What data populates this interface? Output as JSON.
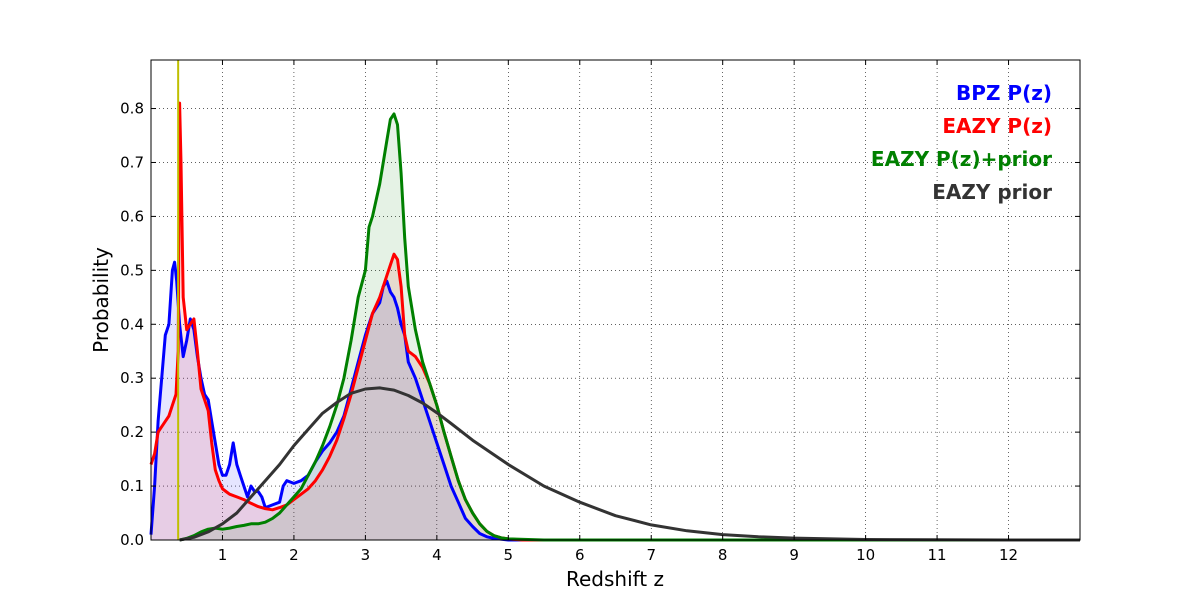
{
  "chart_data": {
    "type": "line",
    "title": "",
    "xlabel": "Redshift z",
    "ylabel": "Probability",
    "xlim": [
      0,
      13
    ],
    "ylim": [
      0,
      0.89
    ],
    "xticks": [
      "1",
      "2",
      "3",
      "4",
      "5",
      "6",
      "7",
      "8",
      "9",
      "10",
      "11",
      "12"
    ],
    "yticks": [
      "0.0",
      "0.1",
      "0.2",
      "0.3",
      "0.4",
      "0.5",
      "0.6",
      "0.7",
      "0.8"
    ],
    "grid": true,
    "legend_position": "top-right",
    "vline": {
      "x": 0.38,
      "color": "#bfbf00"
    },
    "series": [
      {
        "name": "BPZ P(z)",
        "color": "#0000ff",
        "fill": true,
        "points": [
          [
            0,
            0.01
          ],
          [
            0.05,
            0.1
          ],
          [
            0.1,
            0.22
          ],
          [
            0.15,
            0.3
          ],
          [
            0.2,
            0.38
          ],
          [
            0.25,
            0.4
          ],
          [
            0.3,
            0.5
          ],
          [
            0.33,
            0.515
          ],
          [
            0.36,
            0.48
          ],
          [
            0.4,
            0.4
          ],
          [
            0.45,
            0.34
          ],
          [
            0.5,
            0.37
          ],
          [
            0.55,
            0.41
          ],
          [
            0.6,
            0.39
          ],
          [
            0.65,
            0.34
          ],
          [
            0.7,
            0.3
          ],
          [
            0.75,
            0.27
          ],
          [
            0.8,
            0.26
          ],
          [
            0.85,
            0.22
          ],
          [
            0.9,
            0.18
          ],
          [
            0.95,
            0.14
          ],
          [
            1.0,
            0.12
          ],
          [
            1.05,
            0.12
          ],
          [
            1.1,
            0.14
          ],
          [
            1.15,
            0.18
          ],
          [
            1.2,
            0.14
          ],
          [
            1.25,
            0.12
          ],
          [
            1.3,
            0.1
          ],
          [
            1.35,
            0.08
          ],
          [
            1.4,
            0.1
          ],
          [
            1.45,
            0.09
          ],
          [
            1.5,
            0.09
          ],
          [
            1.55,
            0.08
          ],
          [
            1.6,
            0.06
          ],
          [
            1.7,
            0.065
          ],
          [
            1.8,
            0.07
          ],
          [
            1.85,
            0.1
          ],
          [
            1.9,
            0.11
          ],
          [
            2.0,
            0.105
          ],
          [
            2.1,
            0.11
          ],
          [
            2.2,
            0.12
          ],
          [
            2.3,
            0.145
          ],
          [
            2.4,
            0.165
          ],
          [
            2.5,
            0.18
          ],
          [
            2.6,
            0.2
          ],
          [
            2.7,
            0.23
          ],
          [
            2.8,
            0.28
          ],
          [
            2.9,
            0.33
          ],
          [
            3.0,
            0.38
          ],
          [
            3.1,
            0.42
          ],
          [
            3.2,
            0.44
          ],
          [
            3.25,
            0.47
          ],
          [
            3.3,
            0.48
          ],
          [
            3.35,
            0.46
          ],
          [
            3.4,
            0.45
          ],
          [
            3.45,
            0.43
          ],
          [
            3.5,
            0.4
          ],
          [
            3.55,
            0.38
          ],
          [
            3.6,
            0.33
          ],
          [
            3.7,
            0.3
          ],
          [
            3.8,
            0.26
          ],
          [
            3.9,
            0.22
          ],
          [
            4.0,
            0.18
          ],
          [
            4.1,
            0.14
          ],
          [
            4.2,
            0.1
          ],
          [
            4.3,
            0.07
          ],
          [
            4.4,
            0.04
          ],
          [
            4.5,
            0.025
          ],
          [
            4.6,
            0.012
          ],
          [
            4.7,
            0.006
          ],
          [
            4.8,
            0.003
          ],
          [
            5.0,
            0.0
          ],
          [
            13,
            0.0
          ]
        ]
      },
      {
        "name": "EAZY P(z)",
        "color": "#ff0000",
        "fill": true,
        "points": [
          [
            0,
            0.14
          ],
          [
            0.05,
            0.16
          ],
          [
            0.1,
            0.2
          ],
          [
            0.15,
            0.21
          ],
          [
            0.2,
            0.22
          ],
          [
            0.25,
            0.23
          ],
          [
            0.3,
            0.25
          ],
          [
            0.35,
            0.27
          ],
          [
            0.38,
            0.35
          ],
          [
            0.4,
            0.81
          ],
          [
            0.42,
            0.7
          ],
          [
            0.45,
            0.45
          ],
          [
            0.5,
            0.39
          ],
          [
            0.55,
            0.4
          ],
          [
            0.6,
            0.41
          ],
          [
            0.65,
            0.35
          ],
          [
            0.7,
            0.28
          ],
          [
            0.75,
            0.26
          ],
          [
            0.8,
            0.24
          ],
          [
            0.85,
            0.18
          ],
          [
            0.9,
            0.13
          ],
          [
            0.95,
            0.11
          ],
          [
            1.0,
            0.095
          ],
          [
            1.05,
            0.09
          ],
          [
            1.1,
            0.085
          ],
          [
            1.2,
            0.08
          ],
          [
            1.3,
            0.075
          ],
          [
            1.4,
            0.068
          ],
          [
            1.5,
            0.062
          ],
          [
            1.6,
            0.058
          ],
          [
            1.7,
            0.056
          ],
          [
            1.8,
            0.06
          ],
          [
            1.9,
            0.065
          ],
          [
            2.0,
            0.075
          ],
          [
            2.1,
            0.085
          ],
          [
            2.2,
            0.095
          ],
          [
            2.3,
            0.11
          ],
          [
            2.4,
            0.13
          ],
          [
            2.5,
            0.155
          ],
          [
            2.6,
            0.185
          ],
          [
            2.7,
            0.225
          ],
          [
            2.8,
            0.27
          ],
          [
            2.9,
            0.32
          ],
          [
            3.0,
            0.37
          ],
          [
            3.1,
            0.42
          ],
          [
            3.2,
            0.45
          ],
          [
            3.3,
            0.49
          ],
          [
            3.35,
            0.51
          ],
          [
            3.4,
            0.53
          ],
          [
            3.45,
            0.52
          ],
          [
            3.5,
            0.47
          ],
          [
            3.55,
            0.38
          ],
          [
            3.6,
            0.35
          ],
          [
            3.7,
            0.34
          ],
          [
            3.8,
            0.32
          ],
          [
            3.9,
            0.29
          ],
          [
            4.0,
            0.25
          ],
          [
            4.1,
            0.2
          ],
          [
            4.2,
            0.155
          ],
          [
            4.3,
            0.11
          ],
          [
            4.4,
            0.075
          ],
          [
            4.5,
            0.05
          ],
          [
            4.6,
            0.03
          ],
          [
            4.7,
            0.016
          ],
          [
            4.8,
            0.008
          ],
          [
            4.9,
            0.004
          ],
          [
            5.0,
            0.002
          ],
          [
            5.2,
            0.0
          ],
          [
            13,
            0.0
          ]
        ]
      },
      {
        "name": "EAZY P(z)+prior",
        "color": "#008000",
        "fill": true,
        "points": [
          [
            0.4,
            0.0
          ],
          [
            0.5,
            0.003
          ],
          [
            0.6,
            0.008
          ],
          [
            0.7,
            0.015
          ],
          [
            0.8,
            0.02
          ],
          [
            0.9,
            0.022
          ],
          [
            1.0,
            0.02
          ],
          [
            1.1,
            0.022
          ],
          [
            1.2,
            0.025
          ],
          [
            1.3,
            0.027
          ],
          [
            1.4,
            0.03
          ],
          [
            1.5,
            0.03
          ],
          [
            1.6,
            0.033
          ],
          [
            1.7,
            0.04
          ],
          [
            1.8,
            0.05
          ],
          [
            1.9,
            0.065
          ],
          [
            2.0,
            0.08
          ],
          [
            2.1,
            0.095
          ],
          [
            2.2,
            0.12
          ],
          [
            2.3,
            0.145
          ],
          [
            2.4,
            0.175
          ],
          [
            2.5,
            0.21
          ],
          [
            2.6,
            0.25
          ],
          [
            2.7,
            0.3
          ],
          [
            2.8,
            0.37
          ],
          [
            2.9,
            0.45
          ],
          [
            3.0,
            0.5
          ],
          [
            3.05,
            0.58
          ],
          [
            3.1,
            0.6
          ],
          [
            3.2,
            0.66
          ],
          [
            3.3,
            0.74
          ],
          [
            3.35,
            0.78
          ],
          [
            3.4,
            0.79
          ],
          [
            3.45,
            0.77
          ],
          [
            3.5,
            0.68
          ],
          [
            3.55,
            0.56
          ],
          [
            3.6,
            0.47
          ],
          [
            3.7,
            0.39
          ],
          [
            3.8,
            0.33
          ],
          [
            3.9,
            0.29
          ],
          [
            4.0,
            0.25
          ],
          [
            4.1,
            0.2
          ],
          [
            4.2,
            0.155
          ],
          [
            4.3,
            0.11
          ],
          [
            4.4,
            0.075
          ],
          [
            4.5,
            0.05
          ],
          [
            4.6,
            0.03
          ],
          [
            4.7,
            0.016
          ],
          [
            4.8,
            0.008
          ],
          [
            4.9,
            0.004
          ],
          [
            5.0,
            0.002
          ],
          [
            5.5,
            0.0
          ],
          [
            13,
            0.0
          ]
        ]
      },
      {
        "name": "EAZY prior",
        "color": "#333333",
        "fill": false,
        "points": [
          [
            0.4,
            0.0
          ],
          [
            0.6,
            0.005
          ],
          [
            0.8,
            0.015
          ],
          [
            1.0,
            0.03
          ],
          [
            1.2,
            0.05
          ],
          [
            1.4,
            0.08
          ],
          [
            1.6,
            0.11
          ],
          [
            1.8,
            0.14
          ],
          [
            2.0,
            0.175
          ],
          [
            2.2,
            0.205
          ],
          [
            2.4,
            0.235
          ],
          [
            2.6,
            0.255
          ],
          [
            2.8,
            0.272
          ],
          [
            3.0,
            0.28
          ],
          [
            3.2,
            0.282
          ],
          [
            3.4,
            0.278
          ],
          [
            3.6,
            0.268
          ],
          [
            3.8,
            0.254
          ],
          [
            4.0,
            0.236
          ],
          [
            4.2,
            0.216
          ],
          [
            4.5,
            0.185
          ],
          [
            5.0,
            0.14
          ],
          [
            5.5,
            0.1
          ],
          [
            6.0,
            0.07
          ],
          [
            6.5,
            0.045
          ],
          [
            7.0,
            0.028
          ],
          [
            7.5,
            0.017
          ],
          [
            8.0,
            0.01
          ],
          [
            8.5,
            0.006
          ],
          [
            9.0,
            0.0035
          ],
          [
            10.0,
            0.001
          ],
          [
            11.0,
            0.0003
          ],
          [
            12.0,
            0.0
          ],
          [
            13,
            0.0
          ]
        ]
      }
    ]
  }
}
